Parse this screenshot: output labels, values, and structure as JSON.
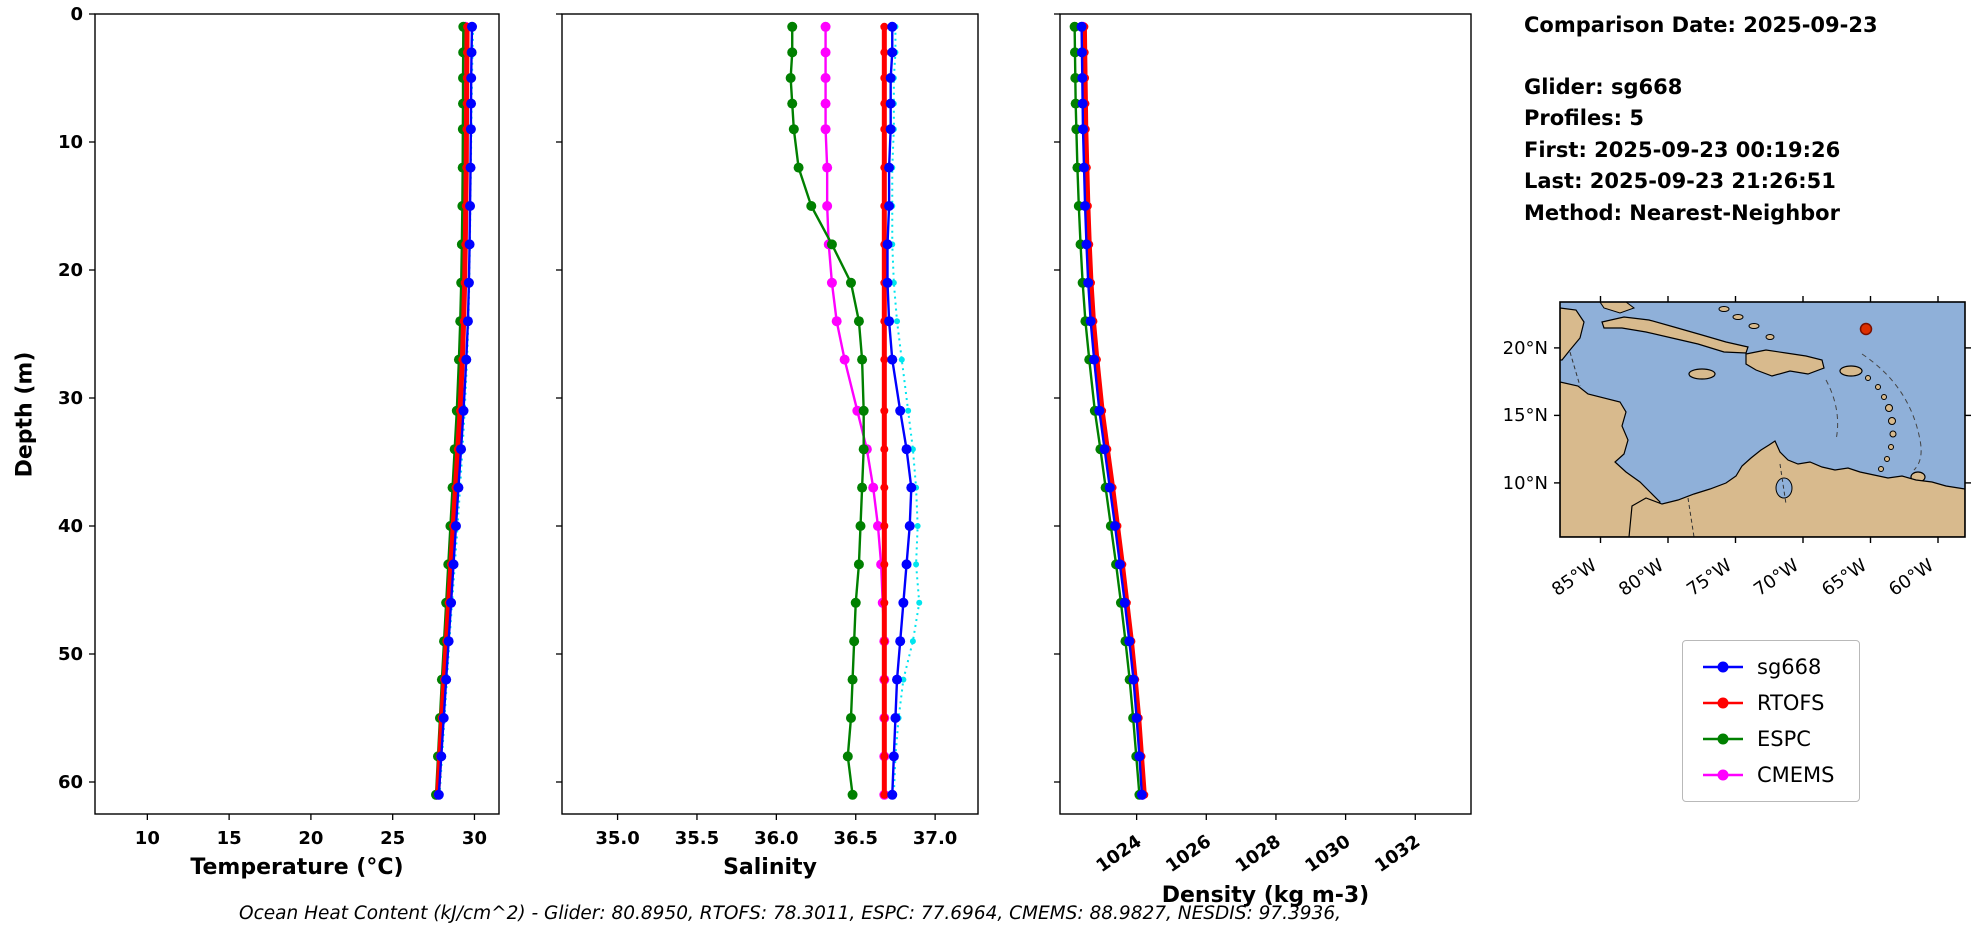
{
  "ylabel": "Depth (m)",
  "info_panel": {
    "lines": [
      "Comparison Date: 2025-09-23",
      "Glider: sg668",
      "Profiles: 5",
      "First: 2025-09-23 00:19:26",
      "Last: 2025-09-23 21:26:51",
      "Method: Nearest-Neighbor"
    ]
  },
  "footer": "Ocean Heat Content (kJ/cm^2) - Glider: 80.8950,  RTOFS: 78.3011,  ESPC: 77.6964,  CMEMS: 88.9827,  NESDIS: 97.3936,",
  "legend": {
    "entries": [
      {
        "label": "sg668",
        "color": "#0000ff"
      },
      {
        "label": "RTOFS",
        "color": "#ff0000"
      },
      {
        "label": "ESPC",
        "color": "#008000"
      },
      {
        "label": "CMEMS",
        "color": "#ff00ff"
      }
    ]
  },
  "map": {
    "lat_labels": [
      "20°N",
      "15°N",
      "10°N"
    ],
    "lon_labels": [
      "85°W",
      "80°W",
      "75°W",
      "70°W",
      "65°W",
      "60°W"
    ],
    "ocean_color": "#8fb0d9",
    "land_color": "#d8ba8d",
    "marker_color": "#dd2f00"
  },
  "chart_data": [
    {
      "id": "temperature",
      "type": "line",
      "title": "",
      "xlabel": "Temperature (°C)",
      "ylabel": "Depth (m)",
      "xlim": [
        6.8,
        31.5
      ],
      "xticks": [
        10,
        15,
        20,
        25,
        30
      ],
      "xtick_labels": [
        "10",
        "15",
        "20",
        "25",
        "30"
      ],
      "xtick_rotation": 0,
      "ylim": [
        0,
        62.5
      ],
      "yticks": [
        0,
        10,
        20,
        30,
        40,
        50,
        60
      ],
      "y_inverted": true,
      "grid": false,
      "depths": [
        1,
        3,
        5,
        7,
        9,
        12,
        15,
        18,
        21,
        24,
        27,
        31,
        34,
        37,
        40,
        43,
        46,
        49,
        52,
        55,
        58,
        61
      ],
      "series": [
        {
          "name": "sg668",
          "color": "#0000ff",
          "lw": 2.4,
          "marker_r": 5,
          "values": [
            29.85,
            29.82,
            29.8,
            29.79,
            29.78,
            29.76,
            29.73,
            29.7,
            29.66,
            29.6,
            29.5,
            29.33,
            29.18,
            29.02,
            28.87,
            28.72,
            28.57,
            28.42,
            28.27,
            28.12,
            27.97,
            27.82
          ]
        },
        {
          "name": "RTOFS",
          "color": "#ff0000",
          "lw": 5,
          "marker_r": 4,
          "values": [
            29.55,
            29.54,
            29.53,
            29.52,
            29.51,
            29.5,
            29.47,
            29.44,
            29.4,
            29.34,
            29.26,
            29.12,
            28.98,
            28.84,
            28.7,
            28.56,
            28.42,
            28.28,
            28.14,
            28.0,
            27.88,
            27.75
          ]
        },
        {
          "name": "ESPC",
          "color": "#008000",
          "lw": 2.4,
          "marker_r": 5,
          "values": [
            29.32,
            29.31,
            29.3,
            29.3,
            29.29,
            29.28,
            29.26,
            29.23,
            29.19,
            29.13,
            29.05,
            28.92,
            28.79,
            28.66,
            28.53,
            28.4,
            28.27,
            28.14,
            28.01,
            27.89,
            27.77,
            27.65
          ]
        },
        {
          "name": "CMEMS",
          "color": "#ff00ff",
          "lw": 2.4,
          "marker_r": 5,
          "values": [
            29.45,
            29.44,
            29.43,
            29.42,
            29.41,
            29.39,
            29.36,
            29.33,
            29.29,
            29.23,
            29.15,
            29.01,
            28.88,
            28.74,
            28.6,
            28.46,
            28.32,
            28.19,
            28.06,
            27.93,
            27.81,
            27.7
          ]
        },
        {
          "name": "NESDIS",
          "color": "#00e5ee",
          "lw": 2,
          "marker_r": 3,
          "style": "dotted",
          "values": [
            29.92,
            29.88,
            29.85,
            29.83,
            29.81,
            29.78,
            29.75,
            29.72,
            29.68,
            29.63,
            29.55,
            29.4,
            29.27,
            29.12,
            28.97,
            28.8,
            28.63,
            28.47,
            28.32,
            28.17,
            28.02,
            27.87
          ]
        }
      ]
    },
    {
      "id": "salinity",
      "type": "line",
      "title": "",
      "xlabel": "Salinity",
      "ylabel": "",
      "xlim": [
        34.65,
        37.27
      ],
      "xticks": [
        35.0,
        35.5,
        36.0,
        36.5,
        37.0
      ],
      "xtick_labels": [
        "35.0",
        "35.5",
        "36.0",
        "36.5",
        "37.0"
      ],
      "xtick_rotation": 0,
      "ylim": [
        0,
        62.5
      ],
      "yticks": [
        0,
        10,
        20,
        30,
        40,
        50,
        60
      ],
      "y_inverted": true,
      "grid": false,
      "depths": [
        1,
        3,
        5,
        7,
        9,
        12,
        15,
        18,
        21,
        24,
        27,
        31,
        34,
        37,
        40,
        43,
        46,
        49,
        52,
        55,
        58,
        61
      ],
      "series": [
        {
          "name": "sg668",
          "color": "#0000ff",
          "lw": 2.4,
          "marker_r": 5,
          "values": [
            36.73,
            36.73,
            36.72,
            36.72,
            36.72,
            36.71,
            36.71,
            36.7,
            36.7,
            36.71,
            36.73,
            36.78,
            36.82,
            36.85,
            36.84,
            36.82,
            36.8,
            36.78,
            36.76,
            36.75,
            36.74,
            36.73
          ]
        },
        {
          "name": "RTOFS",
          "color": "#ff0000",
          "lw": 5,
          "marker_r": 4,
          "values": [
            36.68,
            36.68,
            36.68,
            36.68,
            36.68,
            36.68,
            36.68,
            36.68,
            36.68,
            36.68,
            36.68,
            36.68,
            36.68,
            36.68,
            36.68,
            36.68,
            36.68,
            36.68,
            36.68,
            36.68,
            36.68,
            36.68
          ]
        },
        {
          "name": "ESPC",
          "color": "#008000",
          "lw": 2.4,
          "marker_r": 5,
          "values": [
            36.1,
            36.1,
            36.09,
            36.1,
            36.11,
            36.14,
            36.22,
            36.35,
            36.47,
            36.52,
            36.54,
            36.55,
            36.55,
            36.54,
            36.53,
            36.52,
            36.5,
            36.49,
            36.48,
            36.47,
            36.45,
            36.48
          ]
        },
        {
          "name": "CMEMS",
          "color": "#ff00ff",
          "lw": 2.4,
          "marker_r": 5,
          "values": [
            36.31,
            36.31,
            36.31,
            36.31,
            36.31,
            36.32,
            36.32,
            36.33,
            36.35,
            36.38,
            36.43,
            36.51,
            36.57,
            36.61,
            36.64,
            36.66,
            36.67,
            36.68,
            36.68,
            36.68,
            36.68,
            36.68
          ]
        },
        {
          "name": "NESDIS",
          "color": "#00e5ee",
          "lw": 2,
          "marker_r": 3,
          "style": "dotted",
          "values": [
            36.75,
            36.75,
            36.74,
            36.74,
            36.74,
            36.73,
            36.73,
            36.73,
            36.74,
            36.76,
            36.79,
            36.83,
            36.86,
            36.88,
            36.89,
            36.88,
            36.9,
            36.86,
            36.8,
            36.77,
            36.75,
            36.74
          ]
        }
      ]
    },
    {
      "id": "density",
      "type": "line",
      "title": "",
      "xlabel": "Density (kg m-3)",
      "ylabel": "",
      "xlim": [
        1021.8,
        1033.6
      ],
      "xticks": [
        1024,
        1026,
        1028,
        1030,
        1032
      ],
      "xtick_labels": [
        "1024",
        "1026",
        "1028",
        "1030",
        "1032"
      ],
      "xtick_rotation": -35,
      "ylim": [
        0,
        62.5
      ],
      "yticks": [
        0,
        10,
        20,
        30,
        40,
        50,
        60
      ],
      "y_inverted": true,
      "grid": false,
      "depths": [
        1,
        3,
        5,
        7,
        9,
        12,
        15,
        18,
        21,
        24,
        27,
        31,
        34,
        37,
        40,
        43,
        46,
        49,
        52,
        55,
        58,
        61
      ],
      "series": [
        {
          "name": "sg668",
          "color": "#0000ff",
          "lw": 2.4,
          "marker_r": 5,
          "values": [
            1022.42,
            1022.43,
            1022.44,
            1022.45,
            1022.46,
            1022.49,
            1022.52,
            1022.56,
            1022.61,
            1022.68,
            1022.78,
            1022.93,
            1023.08,
            1023.23,
            1023.38,
            1023.52,
            1023.66,
            1023.79,
            1023.91,
            1024.0,
            1024.08,
            1024.15
          ]
        },
        {
          "name": "RTOFS",
          "color": "#ff0000",
          "lw": 5,
          "marker_r": 4,
          "values": [
            1022.5,
            1022.51,
            1022.52,
            1022.53,
            1022.54,
            1022.57,
            1022.6,
            1022.64,
            1022.69,
            1022.76,
            1022.86,
            1023.01,
            1023.16,
            1023.31,
            1023.45,
            1023.59,
            1023.72,
            1023.85,
            1023.96,
            1024.06,
            1024.14,
            1024.22
          ]
        },
        {
          "name": "ESPC",
          "color": "#008000",
          "lw": 2.4,
          "marker_r": 5,
          "values": [
            1022.22,
            1022.23,
            1022.24,
            1022.25,
            1022.27,
            1022.3,
            1022.34,
            1022.39,
            1022.45,
            1022.53,
            1022.64,
            1022.8,
            1022.96,
            1023.11,
            1023.26,
            1023.41,
            1023.55,
            1023.68,
            1023.8,
            1023.9,
            1023.99,
            1024.08
          ]
        },
        {
          "name": "CMEMS",
          "color": "#ff00ff",
          "lw": 2.4,
          "marker_r": 5,
          "values": [
            1022.46,
            1022.47,
            1022.48,
            1022.49,
            1022.5,
            1022.53,
            1022.56,
            1022.6,
            1022.65,
            1022.72,
            1022.82,
            1022.97,
            1023.12,
            1023.26,
            1023.4,
            1023.54,
            1023.67,
            1023.8,
            1023.92,
            1024.01,
            1024.09,
            1024.16
          ]
        }
      ]
    }
  ]
}
